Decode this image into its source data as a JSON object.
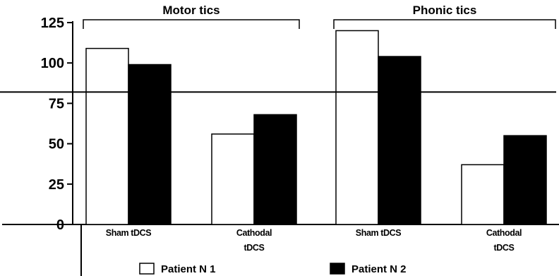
{
  "chart_data": {
    "type": "bar",
    "groups": [
      {
        "label": "Motor tics",
        "categories": [
          0,
          1
        ]
      },
      {
        "label": "Phonic tics",
        "categories": [
          2,
          3
        ]
      }
    ],
    "categories": [
      {
        "lines": [
          "Sham tDCS"
        ]
      },
      {
        "lines": [
          "Cathodal",
          "tDCS"
        ]
      },
      {
        "lines": [
          "Sham tDCS"
        ]
      },
      {
        "lines": [
          "Cathodal",
          "tDCS"
        ]
      }
    ],
    "series": [
      {
        "name": "Patient N 1",
        "fill": "#ffffff",
        "values": [
          109,
          56,
          120,
          37
        ]
      },
      {
        "name": "Patient N 2",
        "fill": "#000000",
        "values": [
          99,
          68,
          104,
          55
        ]
      }
    ],
    "ylim": [
      0,
      125
    ],
    "yticks": [
      0,
      25,
      50,
      75,
      100,
      125
    ],
    "reference_line": 82,
    "legend_position": "bottom"
  }
}
